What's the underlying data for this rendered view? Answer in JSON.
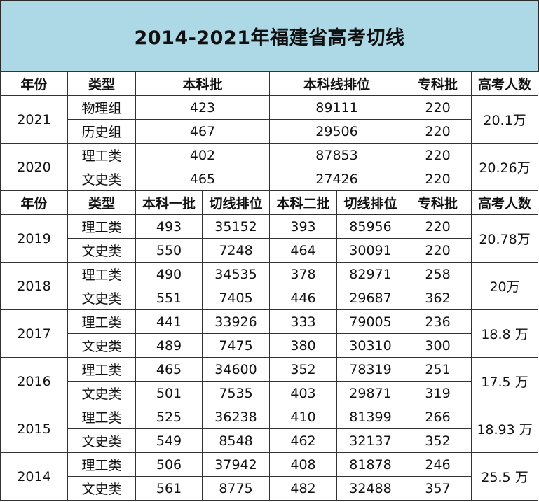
{
  "title": "2014-2021年福建省高考切线",
  "header_new": {
    "year": "年份",
    "type": "类型",
    "undergrad": "本科批",
    "undergrad_rank": "本科线排位",
    "vocational": "专科批",
    "applicants": "高考人数"
  },
  "rows_new": [
    {
      "year": "2021",
      "applicants": "20.1万",
      "tracks": [
        {
          "type": "物理组",
          "undergrad": "423",
          "rank": "89111",
          "vocational": "220"
        },
        {
          "type": "历史组",
          "undergrad": "467",
          "rank": "29506",
          "vocational": "220"
        }
      ]
    },
    {
      "year": "2020",
      "applicants": "20.26万",
      "tracks": [
        {
          "type": "理工类",
          "undergrad": "402",
          "rank": "87853",
          "vocational": "220"
        },
        {
          "type": "文史类",
          "undergrad": "465",
          "rank": "27426",
          "vocational": "220"
        }
      ]
    }
  ],
  "header_old": {
    "year": "年份",
    "type": "类型",
    "tier1": "本科一批",
    "tier1_rank": "切线排位",
    "tier2": "本科二批",
    "tier2_rank": "切线排位",
    "vocational": "专科批",
    "applicants": "高考人数"
  },
  "rows_old": [
    {
      "year": "2019",
      "applicants": "20.78万",
      "tracks": [
        {
          "type": "理工类",
          "tier1": "493",
          "tier1_rank": "35152",
          "tier2": "393",
          "tier2_rank": "85956",
          "vocational": "220"
        },
        {
          "type": "文史类",
          "tier1": "550",
          "tier1_rank": "7248",
          "tier2": "464",
          "tier2_rank": "30091",
          "vocational": "220"
        }
      ]
    },
    {
      "year": "2018",
      "applicants": "20万",
      "tracks": [
        {
          "type": "理工类",
          "tier1": "490",
          "tier1_rank": "34535",
          "tier2": "378",
          "tier2_rank": "82971",
          "vocational": "258"
        },
        {
          "type": "文史类",
          "tier1": "551",
          "tier1_rank": "7405",
          "tier2": "446",
          "tier2_rank": "29687",
          "vocational": "362"
        }
      ]
    },
    {
      "year": "2017",
      "applicants": "18.8 万",
      "tracks": [
        {
          "type": "理工类",
          "tier1": "441",
          "tier1_rank": "33926",
          "tier2": "333",
          "tier2_rank": "79005",
          "vocational": "236"
        },
        {
          "type": "文史类",
          "tier1": "489",
          "tier1_rank": "7475",
          "tier2": "380",
          "tier2_rank": "30310",
          "vocational": "300"
        }
      ]
    },
    {
      "year": "2016",
      "applicants": "17.5 万",
      "tracks": [
        {
          "type": "理工类",
          "tier1": "465",
          "tier1_rank": "34600",
          "tier2": "352",
          "tier2_rank": "78319",
          "vocational": "251"
        },
        {
          "type": "文史类",
          "tier1": "501",
          "tier1_rank": "7535",
          "tier2": "403",
          "tier2_rank": "29871",
          "vocational": "319"
        }
      ]
    },
    {
      "year": "2015",
      "applicants": "18.93 万",
      "tracks": [
        {
          "type": "理工类",
          "tier1": "525",
          "tier1_rank": "36238",
          "tier2": "410",
          "tier2_rank": "81399",
          "vocational": "266"
        },
        {
          "type": "文史类",
          "tier1": "549",
          "tier1_rank": "8548",
          "tier2": "462",
          "tier2_rank": "32137",
          "vocational": "352"
        }
      ]
    },
    {
      "year": "2014",
      "applicants": "25.5 万",
      "tracks": [
        {
          "type": "理工类",
          "tier1": "506",
          "tier1_rank": "37942",
          "tier2": "408",
          "tier2_rank": "81878",
          "vocational": "246"
        },
        {
          "type": "文史类",
          "tier1": "561",
          "tier1_rank": "8775",
          "tier2": "482",
          "tier2_rank": "32488",
          "vocational": "357"
        }
      ]
    }
  ],
  "colors": {
    "title_background": "#add8e6",
    "border": "#333333",
    "text": "#111111"
  }
}
